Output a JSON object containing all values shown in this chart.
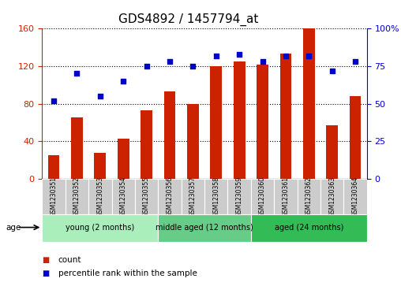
{
  "title": "GDS4892 / 1457794_at",
  "categories": [
    "GSM1230351",
    "GSM1230352",
    "GSM1230353",
    "GSM1230354",
    "GSM1230355",
    "GSM1230356",
    "GSM1230357",
    "GSM1230358",
    "GSM1230359",
    "GSM1230360",
    "GSM1230361",
    "GSM1230362",
    "GSM1230363",
    "GSM1230364"
  ],
  "bar_values": [
    25,
    65,
    28,
    43,
    73,
    93,
    80,
    120,
    125,
    122,
    133,
    160,
    57,
    88
  ],
  "scatter_pct": [
    52,
    70,
    55,
    65,
    75,
    78,
    75,
    82,
    83,
    78,
    82,
    82,
    72,
    78
  ],
  "bar_color": "#cc2200",
  "scatter_color": "#0000cc",
  "left_ylim": [
    0,
    160
  ],
  "right_ylim": [
    0,
    100
  ],
  "left_yticks": [
    0,
    40,
    80,
    120,
    160
  ],
  "right_yticks": [
    0,
    25,
    50,
    75,
    100
  ],
  "right_yticklabels": [
    "0",
    "25",
    "50",
    "75",
    "100%"
  ],
  "groups": [
    {
      "label": "young (2 months)",
      "start": 0,
      "end": 5,
      "color": "#aaeebb"
    },
    {
      "label": "middle aged (12 months)",
      "start": 5,
      "end": 9,
      "color": "#66cc88"
    },
    {
      "label": "aged (24 months)",
      "start": 9,
      "end": 14,
      "color": "#33bb55"
    }
  ],
  "age_label": "age",
  "legend_items": [
    {
      "label": "count",
      "color": "#cc2200"
    },
    {
      "label": "percentile rank within the sample",
      "color": "#0000cc"
    }
  ],
  "bar_width": 0.5,
  "title_fontsize": 11,
  "tick_fontsize": 8,
  "label_fontsize": 7.5,
  "group_label_fontsize": 7,
  "cat_label_fontsize": 5.5
}
